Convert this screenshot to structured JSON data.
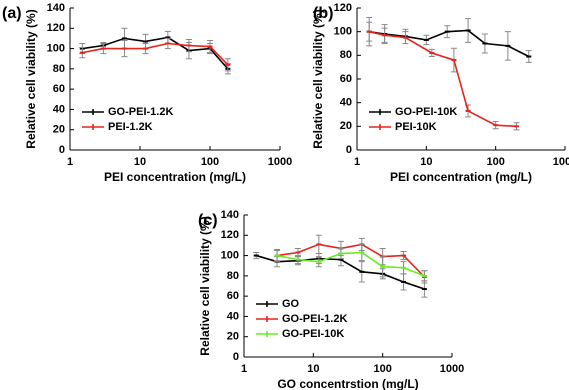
{
  "chart_data": [
    {
      "type": "line",
      "panel_label": "(a)",
      "xlabel": "PEI concentration (mg/L)",
      "ylabel": "Relative cell viability (%)",
      "xscale": "log",
      "xlim": [
        1,
        1000
      ],
      "xticks": [
        1,
        10,
        100,
        1000
      ],
      "ylim": [
        0,
        140
      ],
      "yticks": [
        0,
        20,
        40,
        60,
        80,
        100,
        120,
        140
      ],
      "legend": "lower left",
      "series": [
        {
          "name": "GO-PEI-1.2K",
          "color": "#000000",
          "x": [
            1.5,
            3,
            6,
            12,
            25,
            50,
            100,
            180
          ],
          "values": [
            100,
            103,
            110,
            107,
            111,
            98,
            100,
            80
          ],
          "errors": [
            5,
            3,
            10,
            7,
            6,
            8,
            5,
            5
          ]
        },
        {
          "name": "PEI-1.2K",
          "color": "#e8231d",
          "x": [
            1.5,
            3,
            6,
            12,
            25,
            50,
            100,
            180
          ],
          "values": [
            96,
            100,
            100,
            100,
            105,
            103,
            102,
            84
          ],
          "errors": [
            5,
            5,
            8,
            5,
            5,
            6,
            6,
            6
          ]
        }
      ]
    },
    {
      "type": "line",
      "panel_label": "(b)",
      "xlabel": "PEI concentration (mg/L)",
      "ylabel": "Relative cell viability (%)",
      "xscale": "log",
      "xlim": [
        1,
        1000
      ],
      "xticks": [
        1,
        10,
        100,
        1000
      ],
      "ylim": [
        0,
        120
      ],
      "yticks": [
        0,
        20,
        40,
        60,
        80,
        100,
        120
      ],
      "legend": "lower left",
      "series": [
        {
          "name": "GO-PEI-10K",
          "color": "#000000",
          "x": [
            1.5,
            2.5,
            5,
            10,
            20,
            40,
            70,
            150,
            300
          ],
          "values": [
            100,
            98,
            96,
            93,
            100,
            101,
            90,
            88,
            79
          ],
          "errors": [
            12,
            8,
            6,
            4,
            5,
            10,
            8,
            12,
            5
          ]
        },
        {
          "name": "PEI-10K",
          "color": "#e8231d",
          "x": [
            1.5,
            2.5,
            5,
            12,
            25,
            40,
            100,
            200
          ],
          "values": [
            100,
            97,
            95,
            82,
            76,
            33,
            21,
            20
          ],
          "errors": [
            8,
            6,
            5,
            3,
            10,
            5,
            3,
            3
          ]
        }
      ]
    },
    {
      "type": "line",
      "panel_label": "(c)",
      "xlabel": "GO concentrstion (mg/L)",
      "ylabel": "Relative cell viability (%)",
      "xscale": "log",
      "xlim": [
        1,
        1000
      ],
      "xticks": [
        1,
        10,
        100,
        1000
      ],
      "ylim": [
        0,
        140
      ],
      "yticks": [
        0,
        20,
        40,
        60,
        80,
        100,
        120,
        140
      ],
      "legend": "lower left",
      "series": [
        {
          "name": "GO",
          "color": "#000000",
          "x": [
            1.5,
            3,
            6,
            12,
            25,
            50,
            100,
            200,
            400
          ],
          "values": [
            100,
            94,
            95,
            97,
            96,
            84,
            82,
            74,
            67
          ],
          "errors": [
            3,
            5,
            4,
            5,
            6,
            10,
            5,
            8,
            8
          ]
        },
        {
          "name": "GO-PEI-1.2K",
          "color": "#e8231d",
          "x": [
            3,
            6,
            12,
            25,
            50,
            100,
            200,
            400
          ],
          "values": [
            100,
            103,
            111,
            107,
            111,
            99,
            100,
            79
          ],
          "errors": [
            6,
            4,
            9,
            7,
            6,
            8,
            4,
            6
          ]
        },
        {
          "name": "GO-PEI-10K",
          "color": "#66ee22",
          "x": [
            3,
            6,
            12,
            25,
            50,
            100,
            200,
            400
          ],
          "values": [
            100,
            96,
            94,
            102,
            103,
            89,
            88,
            80
          ],
          "errors": [
            5,
            4,
            5,
            5,
            8,
            10,
            6,
            5
          ]
        }
      ]
    }
  ]
}
